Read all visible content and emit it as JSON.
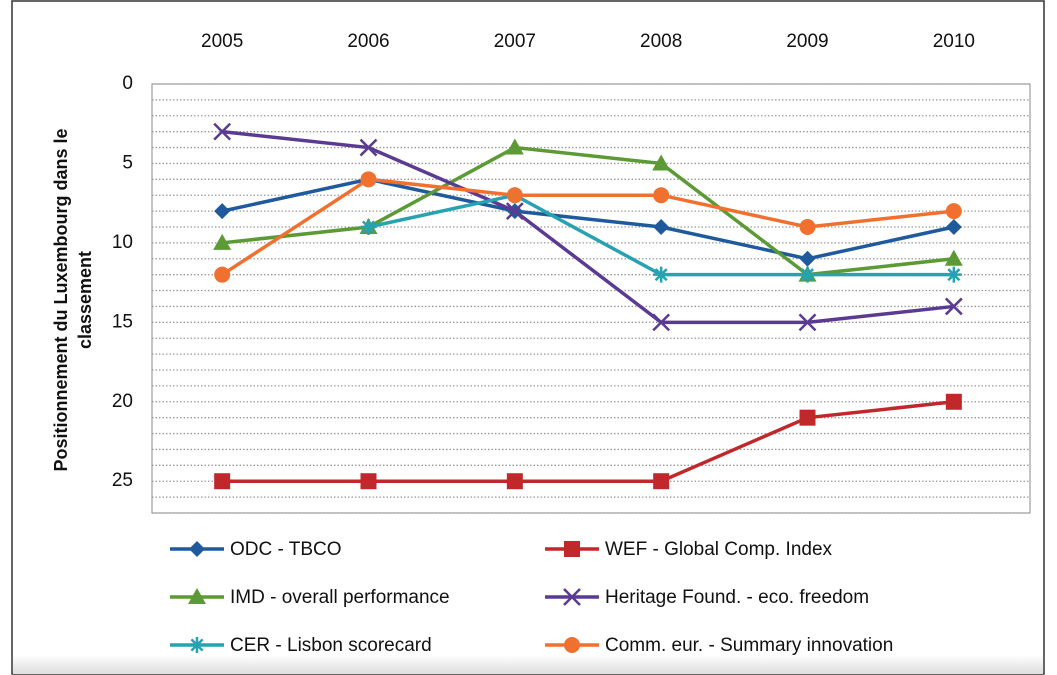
{
  "chart_data": {
    "type": "line",
    "ylabel": [
      "Positionnement du Luxembourg dans le",
      "classement"
    ],
    "categories": [
      "2005",
      "2006",
      "2007",
      "2008",
      "2009",
      "2010"
    ],
    "series": [
      {
        "name": "ODC - TBCO",
        "color": "#1f5a9c",
        "marker": "diamond",
        "values": [
          8,
          6,
          8,
          9,
          11,
          9
        ]
      },
      {
        "name": "WEF - Global Comp. Index",
        "color": "#c0282b",
        "marker": "square",
        "values": [
          25,
          25,
          25,
          25,
          21,
          20
        ]
      },
      {
        "name": "IMD - overall performance",
        "color": "#5b9a34",
        "marker": "triangle",
        "values": [
          10,
          9,
          4,
          5,
          12,
          11
        ]
      },
      {
        "name": "Heritage Found. - eco. freedom",
        "color": "#5b3a91",
        "marker": "x",
        "values": [
          3,
          4,
          8,
          15,
          15,
          14
        ]
      },
      {
        "name": "CER - Lisbon scorecard",
        "color": "#27a2b0",
        "marker": "star",
        "values": [
          null,
          9,
          7,
          12,
          12,
          12
        ]
      },
      {
        "name": "Comm. eur. - Summary innovation",
        "color": "#f07030",
        "marker": "circle",
        "values": [
          12,
          6,
          7,
          7,
          9,
          8
        ]
      }
    ],
    "ylim": [
      27,
      0
    ],
    "yticks": [
      0,
      5,
      10,
      15,
      20,
      25
    ],
    "minor_yticks": [
      1,
      2,
      3,
      4,
      6,
      7,
      8,
      9,
      11,
      12,
      13,
      14,
      16,
      17,
      18,
      19,
      21,
      22,
      23,
      24,
      26,
      27
    ],
    "grid": true,
    "legend": "bottom"
  }
}
